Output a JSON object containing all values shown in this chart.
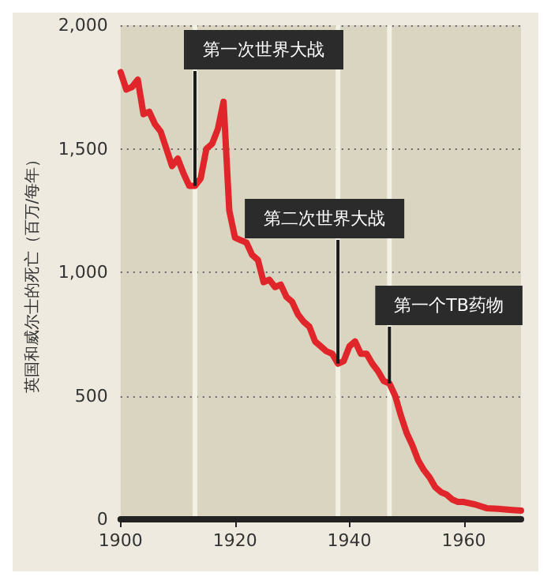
{
  "chart_data": {
    "type": "line",
    "ylabel": "英国和威尔士的死亡（百万/每年）",
    "x": [
      1900,
      1901,
      1902,
      1903,
      1904,
      1905,
      1906,
      1907,
      1908,
      1909,
      1910,
      1911,
      1912,
      1913,
      1914,
      1915,
      1916,
      1917,
      1918,
      1919,
      1920,
      1921,
      1922,
      1923,
      1924,
      1925,
      1926,
      1927,
      1928,
      1929,
      1930,
      1931,
      1932,
      1933,
      1934,
      1935,
      1936,
      1937,
      1938,
      1939,
      1940,
      1941,
      1942,
      1943,
      1944,
      1945,
      1946,
      1947,
      1948,
      1949,
      1950,
      1951,
      1952,
      1953,
      1954,
      1955,
      1956,
      1957,
      1958,
      1959,
      1960,
      1962,
      1964,
      1966,
      1968,
      1970
    ],
    "series": [
      {
        "color": "#e0262a",
        "values": [
          1810,
          1740,
          1750,
          1780,
          1640,
          1650,
          1600,
          1570,
          1500,
          1430,
          1460,
          1400,
          1350,
          1350,
          1380,
          1500,
          1520,
          1580,
          1690,
          1250,
          1140,
          1130,
          1120,
          1070,
          1050,
          960,
          970,
          940,
          950,
          900,
          880,
          830,
          800,
          780,
          720,
          700,
          680,
          670,
          630,
          640,
          700,
          720,
          670,
          670,
          630,
          600,
          560,
          550,
          500,
          420,
          350,
          300,
          240,
          200,
          170,
          130,
          110,
          100,
          80,
          70,
          70,
          60,
          45,
          42,
          38,
          35
        ]
      }
    ],
    "xlim": [
      1900,
      1970
    ],
    "xticks": [
      1900,
      1920,
      1940,
      1960
    ],
    "ylim": [
      0,
      2000
    ],
    "yticks": [
      0,
      {
        "value": 500,
        "label": "500"
      },
      {
        "value": 1000,
        "label": "1,000"
      },
      {
        "value": 1500,
        "label": "1,500"
      },
      {
        "value": 2000,
        "label": "2,000"
      }
    ],
    "grid": "y",
    "marker": "none",
    "line_style": "solid",
    "ref_lines": [
      {
        "axis": "x",
        "value": 1913,
        "label": "第一次世界大战",
        "color": "#f3f0e4"
      },
      {
        "axis": "x",
        "value": 1938,
        "label": "第二次世界大战",
        "color": "#f3f0e4"
      },
      {
        "axis": "x",
        "value": 1947,
        "label": "第一个TB药物",
        "color": "#f3f0e4"
      }
    ]
  }
}
